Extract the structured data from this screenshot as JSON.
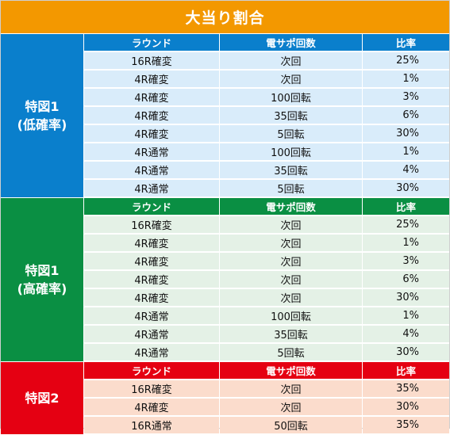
{
  "title": "大当り割合",
  "headers": {
    "round": "ラウンド",
    "support": "電サポ回数",
    "ratio": "比率"
  },
  "colors": {
    "title_bg": "#f39800",
    "blue": "#0a7fcc",
    "blue_light": "#d9ecfa",
    "green": "#0a8f43",
    "green_light": "#e4f1e6",
    "red": "#e50012",
    "red_light": "#fbdccc"
  },
  "sections": [
    {
      "label": "特図1\n(低確率)",
      "rows": [
        {
          "round": "16R確変",
          "support": "次回",
          "ratio": "25%"
        },
        {
          "round": "4R確変",
          "support": "次回",
          "ratio": "1%"
        },
        {
          "round": "4R確変",
          "support": "100回転",
          "ratio": "3%"
        },
        {
          "round": "4R確変",
          "support": "35回転",
          "ratio": "6%"
        },
        {
          "round": "4R確変",
          "support": "5回転",
          "ratio": "30%"
        },
        {
          "round": "4R通常",
          "support": "100回転",
          "ratio": "1%"
        },
        {
          "round": "4R通常",
          "support": "35回転",
          "ratio": "4%"
        },
        {
          "round": "4R通常",
          "support": "5回転",
          "ratio": "30%"
        }
      ]
    },
    {
      "label": "特図1\n(高確率)",
      "rows": [
        {
          "round": "16R確変",
          "support": "次回",
          "ratio": "25%"
        },
        {
          "round": "4R確変",
          "support": "次回",
          "ratio": "1%"
        },
        {
          "round": "4R確変",
          "support": "次回",
          "ratio": "3%"
        },
        {
          "round": "4R確変",
          "support": "次回",
          "ratio": "6%"
        },
        {
          "round": "4R確変",
          "support": "次回",
          "ratio": "30%"
        },
        {
          "round": "4R通常",
          "support": "100回転",
          "ratio": "1%"
        },
        {
          "round": "4R通常",
          "support": "35回転",
          "ratio": "4%"
        },
        {
          "round": "4R通常",
          "support": "5回転",
          "ratio": "30%"
        }
      ]
    },
    {
      "label": "特図2",
      "rows": [
        {
          "round": "16R確変",
          "support": "次回",
          "ratio": "35%"
        },
        {
          "round": "4R確変",
          "support": "次回",
          "ratio": "30%"
        },
        {
          "round": "16R通常",
          "support": "50回転",
          "ratio": "35%"
        }
      ]
    }
  ]
}
